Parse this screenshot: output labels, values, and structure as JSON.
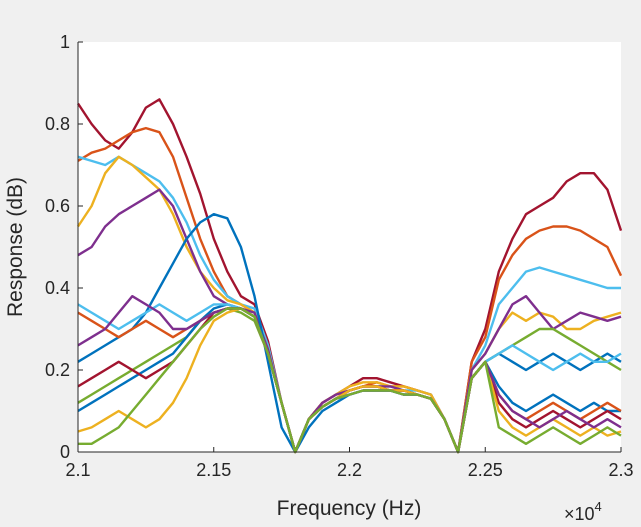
{
  "chart_data": {
    "type": "line",
    "title": "",
    "xlabel": "Frequency (Hz)",
    "ylabel": "Response (dB)",
    "x_exponent_label": {
      "base": "×10",
      "exponent": "4"
    },
    "xlim": [
      21000,
      23000
    ],
    "ylim": [
      0,
      1
    ],
    "x_ticks": [
      21000,
      21500,
      22000,
      22500,
      23000
    ],
    "x_tick_labels": [
      "2.1",
      "2.15",
      "2.2",
      "2.25",
      "2.3"
    ],
    "y_ticks": [
      0,
      0.2,
      0.4,
      0.6,
      0.8,
      1
    ],
    "y_tick_labels": [
      "0",
      "0.2",
      "0.4",
      "0.6",
      "0.8",
      "1"
    ],
    "grid": false,
    "legend": "none",
    "x": [
      21000,
      21050,
      21100,
      21150,
      21200,
      21250,
      21300,
      21350,
      21400,
      21450,
      21500,
      21550,
      21600,
      21650,
      21700,
      21750,
      21800,
      21850,
      21900,
      21950,
      22000,
      22050,
      22100,
      22150,
      22200,
      22250,
      22300,
      22350,
      22400,
      22450,
      22500,
      22550,
      22600,
      22650,
      22700,
      22750,
      22800,
      22850,
      22900,
      22950,
      23000
    ],
    "series": [
      {
        "color": "#A2142F",
        "values": [
          0.85,
          0.8,
          0.76,
          0.74,
          0.78,
          0.84,
          0.86,
          0.8,
          0.72,
          0.63,
          0.52,
          0.44,
          0.38,
          0.36,
          0.27,
          0.12,
          0.0,
          0.08,
          0.12,
          0.14,
          0.16,
          0.18,
          0.18,
          0.17,
          0.16,
          0.15,
          0.14,
          0.08,
          0.0,
          0.22,
          0.3,
          0.44,
          0.52,
          0.58,
          0.6,
          0.62,
          0.66,
          0.68,
          0.68,
          0.64,
          0.54
        ]
      },
      {
        "color": "#D95319",
        "values": [
          0.71,
          0.73,
          0.74,
          0.76,
          0.78,
          0.79,
          0.78,
          0.72,
          0.62,
          0.52,
          0.44,
          0.38,
          0.36,
          0.34,
          0.25,
          0.12,
          0.0,
          0.08,
          0.12,
          0.14,
          0.15,
          0.16,
          0.17,
          0.16,
          0.16,
          0.15,
          0.14,
          0.08,
          0.0,
          0.22,
          0.28,
          0.42,
          0.48,
          0.52,
          0.54,
          0.55,
          0.55,
          0.54,
          0.52,
          0.5,
          0.43
        ]
      },
      {
        "color": "#4DBEEE",
        "values": [
          0.72,
          0.71,
          0.7,
          0.72,
          0.7,
          0.68,
          0.66,
          0.62,
          0.56,
          0.48,
          0.42,
          0.38,
          0.36,
          0.35,
          0.26,
          0.12,
          0.0,
          0.08,
          0.11,
          0.13,
          0.15,
          0.16,
          0.16,
          0.16,
          0.15,
          0.15,
          0.14,
          0.08,
          0.0,
          0.2,
          0.26,
          0.36,
          0.4,
          0.44,
          0.45,
          0.44,
          0.43,
          0.42,
          0.41,
          0.4,
          0.4
        ]
      },
      {
        "color": "#EDB120",
        "values": [
          0.55,
          0.6,
          0.68,
          0.72,
          0.7,
          0.67,
          0.64,
          0.58,
          0.5,
          0.44,
          0.4,
          0.37,
          0.36,
          0.34,
          0.25,
          0.12,
          0.0,
          0.08,
          0.12,
          0.14,
          0.16,
          0.17,
          0.17,
          0.16,
          0.16,
          0.15,
          0.14,
          0.08,
          0.0,
          0.2,
          0.24,
          0.3,
          0.34,
          0.32,
          0.34,
          0.33,
          0.3,
          0.3,
          0.32,
          0.33,
          0.34
        ]
      },
      {
        "color": "#7E2F8E",
        "values": [
          0.48,
          0.5,
          0.55,
          0.58,
          0.6,
          0.62,
          0.64,
          0.6,
          0.52,
          0.44,
          0.38,
          0.36,
          0.35,
          0.34,
          0.25,
          0.12,
          0.0,
          0.08,
          0.12,
          0.14,
          0.15,
          0.16,
          0.16,
          0.16,
          0.15,
          0.14,
          0.13,
          0.08,
          0.0,
          0.2,
          0.24,
          0.3,
          0.36,
          0.38,
          0.34,
          0.3,
          0.32,
          0.34,
          0.33,
          0.32,
          0.33
        ]
      },
      {
        "color": "#0072BD",
        "values": [
          0.22,
          0.24,
          0.26,
          0.28,
          0.3,
          0.34,
          0.4,
          0.46,
          0.52,
          0.56,
          0.58,
          0.57,
          0.5,
          0.38,
          0.22,
          0.06,
          0.0,
          0.06,
          0.1,
          0.12,
          0.14,
          0.15,
          0.15,
          0.15,
          0.14,
          0.14,
          0.13,
          0.08,
          0.0,
          0.18,
          0.22,
          0.24,
          0.22,
          0.2,
          0.22,
          0.24,
          0.22,
          0.2,
          0.22,
          0.24,
          0.22
        ]
      },
      {
        "color": "#77AC30",
        "values": [
          0.12,
          0.14,
          0.16,
          0.18,
          0.2,
          0.22,
          0.24,
          0.26,
          0.28,
          0.32,
          0.34,
          0.35,
          0.34,
          0.32,
          0.24,
          0.12,
          0.0,
          0.08,
          0.11,
          0.13,
          0.15,
          0.16,
          0.16,
          0.15,
          0.15,
          0.14,
          0.13,
          0.08,
          0.0,
          0.18,
          0.22,
          0.24,
          0.26,
          0.28,
          0.3,
          0.3,
          0.28,
          0.26,
          0.24,
          0.22,
          0.2
        ]
      },
      {
        "color": "#0072BD",
        "values": [
          0.1,
          0.12,
          0.14,
          0.16,
          0.18,
          0.2,
          0.22,
          0.24,
          0.28,
          0.32,
          0.35,
          0.36,
          0.35,
          0.33,
          0.24,
          0.12,
          0.0,
          0.08,
          0.11,
          0.13,
          0.14,
          0.15,
          0.15,
          0.15,
          0.14,
          0.14,
          0.13,
          0.08,
          0.0,
          0.18,
          0.22,
          0.16,
          0.12,
          0.1,
          0.12,
          0.14,
          0.12,
          0.1,
          0.12,
          0.1,
          0.1
        ]
      },
      {
        "color": "#D95319",
        "values": [
          0.34,
          0.32,
          0.3,
          0.28,
          0.3,
          0.32,
          0.3,
          0.28,
          0.3,
          0.32,
          0.34,
          0.35,
          0.35,
          0.33,
          0.24,
          0.12,
          0.0,
          0.08,
          0.11,
          0.13,
          0.15,
          0.16,
          0.16,
          0.15,
          0.15,
          0.14,
          0.13,
          0.08,
          0.0,
          0.18,
          0.22,
          0.14,
          0.1,
          0.08,
          0.1,
          0.12,
          0.1,
          0.08,
          0.1,
          0.12,
          0.1
        ]
      },
      {
        "color": "#4DBEEE",
        "values": [
          0.36,
          0.34,
          0.32,
          0.3,
          0.32,
          0.34,
          0.36,
          0.34,
          0.32,
          0.34,
          0.36,
          0.36,
          0.35,
          0.33,
          0.24,
          0.12,
          0.0,
          0.08,
          0.11,
          0.13,
          0.14,
          0.15,
          0.15,
          0.15,
          0.14,
          0.14,
          0.13,
          0.08,
          0.0,
          0.18,
          0.22,
          0.24,
          0.26,
          0.24,
          0.22,
          0.2,
          0.22,
          0.24,
          0.22,
          0.22,
          0.24
        ]
      },
      {
        "color": "#A2142F",
        "values": [
          0.16,
          0.18,
          0.2,
          0.22,
          0.2,
          0.18,
          0.2,
          0.22,
          0.26,
          0.3,
          0.34,
          0.35,
          0.35,
          0.33,
          0.24,
          0.12,
          0.0,
          0.08,
          0.11,
          0.13,
          0.15,
          0.16,
          0.16,
          0.15,
          0.15,
          0.14,
          0.13,
          0.08,
          0.0,
          0.18,
          0.22,
          0.12,
          0.08,
          0.06,
          0.08,
          0.1,
          0.08,
          0.06,
          0.08,
          0.1,
          0.08
        ]
      },
      {
        "color": "#EDB120",
        "values": [
          0.05,
          0.06,
          0.08,
          0.1,
          0.08,
          0.06,
          0.08,
          0.12,
          0.18,
          0.26,
          0.32,
          0.34,
          0.35,
          0.33,
          0.24,
          0.12,
          0.0,
          0.08,
          0.11,
          0.13,
          0.15,
          0.16,
          0.16,
          0.15,
          0.15,
          0.14,
          0.13,
          0.08,
          0.0,
          0.18,
          0.22,
          0.1,
          0.06,
          0.04,
          0.06,
          0.08,
          0.06,
          0.04,
          0.06,
          0.04,
          0.05
        ]
      },
      {
        "color": "#7E2F8E",
        "values": [
          0.26,
          0.28,
          0.3,
          0.34,
          0.38,
          0.36,
          0.34,
          0.3,
          0.3,
          0.32,
          0.34,
          0.35,
          0.35,
          0.33,
          0.24,
          0.12,
          0.0,
          0.08,
          0.11,
          0.13,
          0.14,
          0.15,
          0.15,
          0.15,
          0.14,
          0.14,
          0.13,
          0.08,
          0.0,
          0.18,
          0.22,
          0.14,
          0.1,
          0.08,
          0.06,
          0.08,
          0.1,
          0.08,
          0.06,
          0.08,
          0.06
        ]
      },
      {
        "color": "#77AC30",
        "values": [
          0.02,
          0.02,
          0.04,
          0.06,
          0.1,
          0.14,
          0.18,
          0.22,
          0.26,
          0.3,
          0.33,
          0.35,
          0.35,
          0.33,
          0.24,
          0.12,
          0.0,
          0.08,
          0.11,
          0.13,
          0.14,
          0.15,
          0.15,
          0.15,
          0.14,
          0.14,
          0.13,
          0.08,
          0.0,
          0.18,
          0.22,
          0.06,
          0.04,
          0.02,
          0.04,
          0.06,
          0.04,
          0.02,
          0.04,
          0.06,
          0.04
        ]
      }
    ]
  }
}
